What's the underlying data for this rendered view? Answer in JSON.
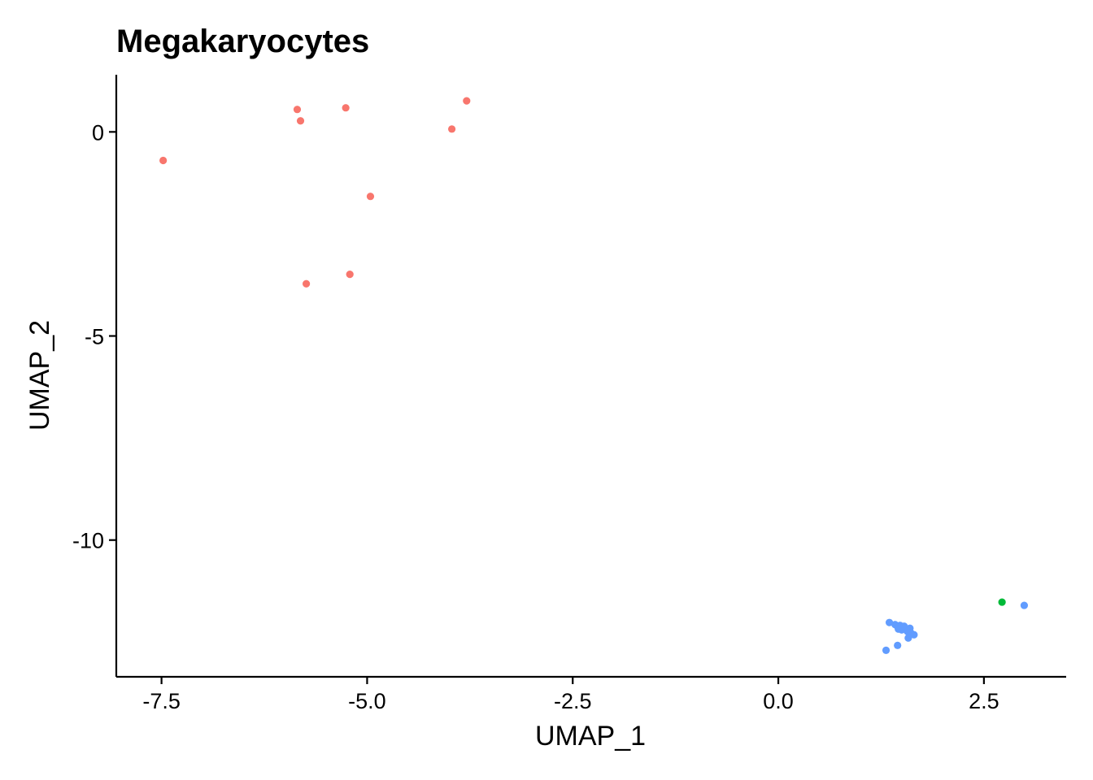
{
  "chart_data": {
    "type": "scatter",
    "title": "Megakaryocytes",
    "xlabel": "UMAP_1",
    "ylabel": "UMAP_2",
    "xlim": [
      -8.05,
      3.5
    ],
    "ylim": [
      -13.35,
      1.4
    ],
    "xticks": [
      {
        "value": -7.5,
        "label": "-7.5"
      },
      {
        "value": -5.0,
        "label": "-5.0"
      },
      {
        "value": -2.5,
        "label": "-2.5"
      },
      {
        "value": 0.0,
        "label": "0.0"
      },
      {
        "value": 2.5,
        "label": "2.5"
      }
    ],
    "yticks": [
      {
        "value": 0,
        "label": "0"
      },
      {
        "value": -5,
        "label": "-5"
      },
      {
        "value": -10,
        "label": "-10"
      }
    ],
    "grid": false,
    "legend": "none",
    "series": [
      {
        "color": "#F8766D",
        "points": [
          {
            "x": -5.85,
            "y": 0.55
          },
          {
            "x": -5.26,
            "y": 0.59
          },
          {
            "x": -3.79,
            "y": 0.76
          },
          {
            "x": -5.81,
            "y": 0.27
          },
          {
            "x": -3.97,
            "y": 0.07
          },
          {
            "x": -7.48,
            "y": -0.7
          },
          {
            "x": -4.96,
            "y": -1.58
          },
          {
            "x": -5.21,
            "y": -3.49
          },
          {
            "x": -5.74,
            "y": -3.72
          }
        ]
      },
      {
        "color": "#00BA38",
        "points": [
          {
            "x": 2.72,
            "y": -11.52
          }
        ]
      },
      {
        "color": "#619CFF",
        "points": [
          {
            "x": 2.99,
            "y": -11.6
          },
          {
            "x": 1.35,
            "y": -12.02
          },
          {
            "x": 1.42,
            "y": -12.07
          },
          {
            "x": 1.45,
            "y": -12.12
          },
          {
            "x": 1.48,
            "y": -12.09
          },
          {
            "x": 1.53,
            "y": -12.11
          },
          {
            "x": 1.55,
            "y": -12.17
          },
          {
            "x": 1.6,
            "y": -12.16
          },
          {
            "x": 1.46,
            "y": -12.18
          },
          {
            "x": 1.5,
            "y": -12.2
          },
          {
            "x": 1.57,
            "y": -12.24
          },
          {
            "x": 1.61,
            "y": -12.27
          },
          {
            "x": 1.65,
            "y": -12.32
          },
          {
            "x": 1.58,
            "y": -12.4
          },
          {
            "x": 1.45,
            "y": -12.58
          },
          {
            "x": 1.31,
            "y": -12.7
          }
        ]
      }
    ]
  }
}
